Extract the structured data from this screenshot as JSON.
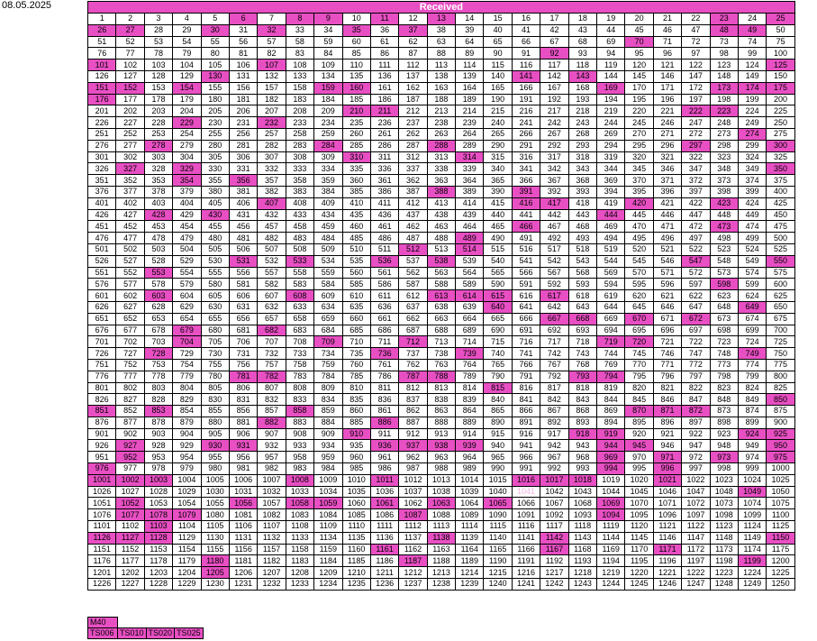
{
  "date": "08.05.2025",
  "title": "Received",
  "grid": {
    "start": 1,
    "end": 1250,
    "columns": 25
  },
  "highlight_color": "#e84fc3",
  "highlighted": [
    6,
    8,
    9,
    11,
    13,
    23,
    25,
    26,
    27,
    30,
    32,
    35,
    37,
    48,
    49,
    70,
    92,
    101,
    107,
    125,
    130,
    141,
    143,
    151,
    152,
    154,
    159,
    160,
    169,
    173,
    174,
    175,
    176,
    210,
    211,
    222,
    223,
    229,
    232,
    274,
    278,
    284,
    288,
    297,
    300,
    310,
    314,
    327,
    329,
    350,
    354,
    356,
    388,
    391,
    407,
    416,
    417,
    420,
    423,
    428,
    430,
    444,
    466,
    473,
    489,
    512,
    514,
    531,
    533,
    536,
    538,
    547,
    550,
    553,
    598,
    603,
    608,
    613,
    614,
    615,
    617,
    640,
    649,
    667,
    668,
    670,
    672,
    679,
    682,
    704,
    709,
    712,
    719,
    720,
    728,
    736,
    739,
    749,
    781,
    782,
    787,
    788,
    793,
    794,
    815,
    850,
    851,
    853,
    858,
    870,
    871,
    872,
    882,
    886,
    910,
    918,
    919,
    924,
    925,
    927,
    930,
    931,
    936,
    937,
    938,
    939,
    944,
    945,
    950,
    952,
    969,
    971,
    973,
    975,
    976,
    994,
    996,
    1001,
    1002,
    1003,
    1008,
    1011,
    1016,
    1017,
    1018,
    1021,
    1049,
    1052,
    1056,
    1058,
    1059,
    1061,
    1063,
    1065,
    1069,
    1077,
    1078,
    1079,
    1087,
    1094,
    1103,
    1126,
    1127,
    1128,
    1138,
    1142,
    1150,
    1161,
    1167,
    1171,
    1180,
    1187,
    1199,
    1205
  ],
  "faint": [
    1041
  ],
  "legend": {
    "group": "M40",
    "items": [
      "TS006",
      "TS010",
      "TS020",
      "TS025"
    ]
  }
}
